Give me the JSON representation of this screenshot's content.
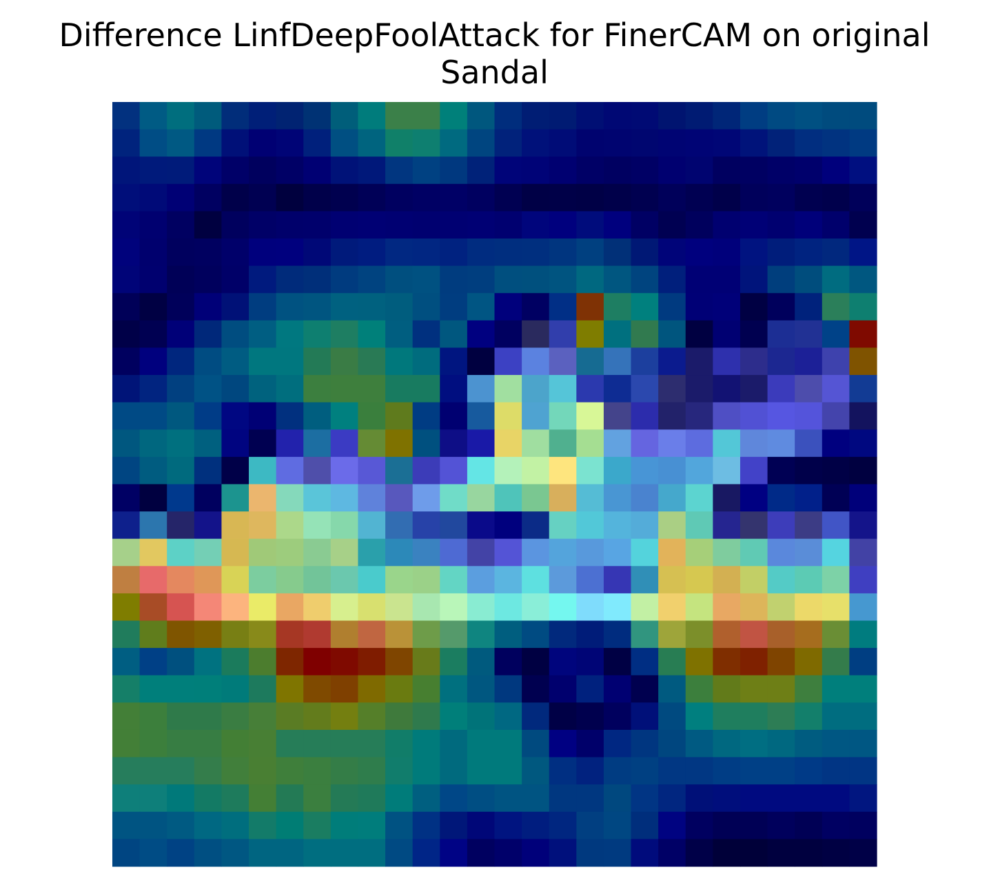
{
  "chart_data": {
    "type": "heatmap",
    "title_lines": [
      "Difference LinfDeepFoolAttack for FinerCAM on original",
      "Sandal"
    ],
    "axes": "off",
    "colorbar": false,
    "rows": 28,
    "cols": 28,
    "cells": [
      [
        "#02317f",
        "#005b84",
        "#006e7e",
        "#005b7c",
        "#012d7a",
        "#001f78",
        "#012372",
        "#003274",
        "#005e7a",
        "#007c7c",
        "#3b8049",
        "#3b8049",
        "#00807a",
        "#00577e",
        "#002d7d",
        "#001d74",
        "#001b73",
        "#000f74",
        "#000874",
        "#000a74",
        "#001470",
        "#001b73",
        "#002678",
        "#003d82",
        "#004a82",
        "#005082",
        "#004b7e",
        "#004b7e"
      ],
      [
        "#00237d",
        "#004d85",
        "#005983",
        "#003982",
        "#001078",
        "#000073",
        "#000476",
        "#00207c",
        "#004f82",
        "#00647f",
        "#108069",
        "#0e7f70",
        "#006a80",
        "#004580",
        "#01227b",
        "#00117a",
        "#000c77",
        "#00036f",
        "#000470",
        "#000670",
        "#000473",
        "#000475",
        "#000676",
        "#00137a",
        "#012279",
        "#012e80",
        "#013380",
        "#003a82"
      ],
      [
        "#00157a",
        "#001a7b",
        "#001b7a",
        "#00047a",
        "#000068",
        "#00005e",
        "#000066",
        "#000073",
        "#001278",
        "#00187a",
        "#013680",
        "#004182",
        "#00387f",
        "#002279",
        "#000479",
        "#000377",
        "#000071",
        "#000066",
        "#000061",
        "#000065",
        "#000070",
        "#000470",
        "#000060",
        "#000062",
        "#000068",
        "#00006c",
        "#00007c",
        "#000f80"
      ],
      [
        "#000e7a",
        "#000a78",
        "#000075",
        "#000061",
        "#00004a",
        "#000052",
        "#00003e",
        "#00004a",
        "#00004f",
        "#000057",
        "#000060",
        "#000064",
        "#000066",
        "#000060",
        "#000052",
        "#000046",
        "#000048",
        "#000046",
        "#00004a",
        "#000050",
        "#00005a",
        "#000052",
        "#00004a",
        "#00005b",
        "#00005e",
        "#000050",
        "#00004c",
        "#00005a"
      ],
      [
        "#000377",
        "#000070",
        "#000061",
        "#000040",
        "#00005e",
        "#000067",
        "#00006b",
        "#00006c",
        "#000072",
        "#000074",
        "#000072",
        "#000070",
        "#000072",
        "#000074",
        "#000070",
        "#00057c",
        "#00007e",
        "#000c7c",
        "#00007e",
        "#000064",
        "#000052",
        "#00005d",
        "#000070",
        "#000076",
        "#000070",
        "#00007a",
        "#00006c",
        "#00004f"
      ],
      [
        "#00027c",
        "#00006e",
        "#00005e",
        "#000060",
        "#00006a",
        "#00007d",
        "#00007e",
        "#000877",
        "#001a7b",
        "#001c80",
        "#012882",
        "#012682",
        "#002280",
        "#002c80",
        "#002e7f",
        "#002f7f",
        "#00357f",
        "#004080",
        "#013078",
        "#001875",
        "#000479",
        "#00007e",
        "#00007b",
        "#001380",
        "#001d7b",
        "#002380",
        "#01287e",
        "#001586"
      ],
      [
        "#000478",
        "#00006f",
        "#000057",
        "#00005d",
        "#000068",
        "#001a7e",
        "#002b7b",
        "#002f7a",
        "#003b7f",
        "#004380",
        "#004f7f",
        "#005181",
        "#003c7f",
        "#003e7f",
        "#004f7f",
        "#00507e",
        "#005480",
        "#006880",
        "#005680",
        "#00447f",
        "#001f7c",
        "#000075",
        "#000075",
        "#00147b",
        "#003e7d",
        "#004d7d",
        "#006c80",
        "#005780"
      ],
      [
        "#000058",
        "#000043",
        "#00005a",
        "#000078",
        "#001177",
        "#003d80",
        "#005281",
        "#005580",
        "#006180",
        "#00617f",
        "#005d7e",
        "#004f80",
        "#003d80",
        "#005583",
        "#00007c",
        "#000062",
        "#012f86",
        "#7f3205",
        "#1e7e62",
        "#00807e",
        "#003a80",
        "#000076",
        "#000079",
        "#000043",
        "#00005c",
        "#00227c",
        "#2b7f5a",
        "#0e7f70"
      ],
      [
        "#000048",
        "#000052",
        "#000078",
        "#00287a",
        "#004d80",
        "#005e82",
        "#007880",
        "#0e7f70",
        "#1e7e62",
        "#00807a",
        "#005e80",
        "#00307f",
        "#00577f",
        "#000080",
        "#000060",
        "#2a2a5e",
        "#313eac",
        "#7f7d00",
        "#00707f",
        "#317a4f",
        "#00557e",
        "#000041",
        "#000072",
        "#000050",
        "#1c2e94",
        "#213194",
        "#004288",
        "#7f0a00"
      ],
      [
        "#00005f",
        "#00007e",
        "#00267e",
        "#004c82",
        "#005c82",
        "#00777f",
        "#00777f",
        "#237a56",
        "#3a7c45",
        "#297a55",
        "#00787c",
        "#006c7e",
        "#001580",
        "#000040",
        "#3c41c3",
        "#5b82e0",
        "#5b61bf",
        "#166b92",
        "#3573ba",
        "#1c3f9e",
        "#0b1b8e",
        "#1b1b6a",
        "#2e30ad",
        "#2d2d8c",
        "#1c2791",
        "#1c2097",
        "#3e42ad",
        "#7f5300"
      ],
      [
        "#001478",
        "#012480",
        "#014080",
        "#005285",
        "#00477f",
        "#00627e",
        "#006e7e",
        "#3c7f3f",
        "#3e7f3d",
        "#3e7f3d",
        "#187b60",
        "#187b60",
        "#000e80",
        "#4c93d0",
        "#a1dfa0",
        "#4ca4cb",
        "#55c5d8",
        "#2b39ae",
        "#0e2c93",
        "#2b48ae",
        "#2d2d6f",
        "#1b1b6a",
        "#121273",
        "#1b1b6a",
        "#3b3bbb",
        "#4d4dac",
        "#5555d4",
        "#123b94"
      ],
      [
        "#004a85",
        "#004a85",
        "#00587f",
        "#003c87",
        "#000782",
        "#000075",
        "#01307f",
        "#005e7f",
        "#00807f",
        "#3a7f3d",
        "#5f7b1d",
        "#003c83",
        "#000071",
        "#175a9e",
        "#dddc68",
        "#4fa3d1",
        "#73d7ba",
        "#d8f797",
        "#44448b",
        "#2c2cac",
        "#22226a",
        "#27277d",
        "#4f4fc4",
        "#5151d4",
        "#5656e1",
        "#5454db",
        "#4444ac",
        "#13135e"
      ],
      [
        "#00577f",
        "#00677f",
        "#00707f",
        "#00607f",
        "#000480",
        "#000051",
        "#2222ac",
        "#1c6ea2",
        "#3b3bc3",
        "#658b34",
        "#7f7200",
        "#00507f",
        "#0e0e86",
        "#1919a7",
        "#e8d466",
        "#a0dea0",
        "#50b08f",
        "#a5de92",
        "#62a2e0",
        "#6565e0",
        "#6a7ee9",
        "#5d6cdf",
        "#53c7d7",
        "#5f87db",
        "#5f8be0",
        "#3b51bd",
        "#00007f",
        "#000880"
      ],
      [
        "#004582",
        "#005c80",
        "#006a7e",
        "#00307e",
        "#000048",
        "#3db9c3",
        "#5f6ce1",
        "#4f4faa",
        "#6b6be9",
        "#5858d6",
        "#1b6f95",
        "#3c3cb8",
        "#5353d6",
        "#64e5e5",
        "#b4f2ba",
        "#c2f2a4",
        "#fee57e",
        "#7be3d0",
        "#3ba8cb",
        "#4895d6",
        "#4890d3",
        "#52a6dc",
        "#6dbde3",
        "#4242c8",
        "#000054",
        "#00004a",
        "#000046",
        "#000040"
      ],
      [
        "#000064",
        "#000040",
        "#00398d",
        "#00005f",
        "#1c948f",
        "#ebb66e",
        "#85d9bb",
        "#5ac5d9",
        "#5eb8e1",
        "#5f82db",
        "#5858bd",
        "#6e9cea",
        "#70dcc8",
        "#98d69f",
        "#4fc4ba",
        "#7ac791",
        "#d8af5c",
        "#55bcd5",
        "#4996d3",
        "#4a83cf",
        "#45a8cc",
        "#5cd4d0",
        "#181862",
        "#000082",
        "#002a88",
        "#01208a",
        "#000055",
        "#00007a"
      ],
      [
        "#0e208c",
        "#2c76ae",
        "#252569",
        "#13138a",
        "#d8b754",
        "#deb75e",
        "#acd88a",
        "#95e3b7",
        "#86d8ab",
        "#52b4d2",
        "#326db2",
        "#2742a8",
        "#21489e",
        "#0a0a8a",
        "#00007e",
        "#0b2b87",
        "#66d1c2",
        "#52c8d8",
        "#54b4dc",
        "#54acd9",
        "#aacf84",
        "#5fc9b5",
        "#252590",
        "#34346e",
        "#3d3dba",
        "#3c3c85",
        "#4155c6",
        "#14148a"
      ],
      [
        "#a6d08a",
        "#e2c860",
        "#5dd1c6",
        "#74cfb5",
        "#d6b852",
        "#a0c978",
        "#9dcc7d",
        "#8acb92",
        "#a7d088",
        "#2aa0ab",
        "#2c89b9",
        "#3a82c0",
        "#4e6ad3",
        "#4343a6",
        "#5454d6",
        "#5b95e0",
        "#54a4dc",
        "#5899dc",
        "#58a5e3",
        "#54d3dc",
        "#e2b35a",
        "#a6cf79",
        "#7fcc9e",
        "#60cab4",
        "#5a88dc",
        "#5a8dd8",
        "#55d4e0",
        "#4242a5"
      ],
      [
        "#bf7f41",
        "#e76a6a",
        "#e4885f",
        "#df9758",
        "#d8d356",
        "#7ccd9f",
        "#86cb8d",
        "#72c499",
        "#6bc8ae",
        "#4acbcc",
        "#9ad58b",
        "#9bd188",
        "#63d5c4",
        "#5b9edf",
        "#5bb5e0",
        "#5ee0e0",
        "#5c9adb",
        "#4c70d2",
        "#3636b4",
        "#308fb7",
        "#d6c052",
        "#d6c850",
        "#d3b052",
        "#c2cf66",
        "#54cbc6",
        "#5ccbb4",
        "#7dd2a7",
        "#3f3fc1"
      ],
      [
        "#7f7d00",
        "#a84c26",
        "#d65451",
        "#f48777",
        "#fcb47e",
        "#eaeb68",
        "#e9a763",
        "#efcd6d",
        "#d7ef8e",
        "#d8e06f",
        "#cae48f",
        "#a8e7b0",
        "#b9f6b9",
        "#89ecd2",
        "#6de8e1",
        "#8aeed8",
        "#74f7ef",
        "#7fdcfc",
        "#80eafd",
        "#c2f0a4",
        "#f1d06d",
        "#c5e47f",
        "#e8a863",
        "#ddb55a",
        "#c1d16f",
        "#ecd969",
        "#e7e06a",
        "#4698d0"
      ],
      [
        "#207c5c",
        "#607d1c",
        "#7f5500",
        "#7f6000",
        "#787f14",
        "#888a1a",
        "#a63724",
        "#b03a30",
        "#b07f2f",
        "#c06641",
        "#ba9238",
        "#6e9c49",
        "#559a6b",
        "#0f8580",
        "#005e7f",
        "#004b82",
        "#01297d",
        "#001c79",
        "#002c7f",
        "#31957f",
        "#9ea53a",
        "#7c8f2a",
        "#b0602d",
        "#c15443",
        "#a8602a",
        "#a66d1e",
        "#6a8e35",
        "#007c7f"
      ],
      [
        "#005e82",
        "#004086",
        "#00507f",
        "#007280",
        "#1b7b5c",
        "#4c7d2e",
        "#7e2600",
        "#7f0000",
        "#7f0a00",
        "#7f1c00",
        "#7f4500",
        "#687b1a",
        "#1b7d60",
        "#005a7e",
        "#00005e",
        "#000042",
        "#00057d",
        "#000576",
        "#000044",
        "#002e83",
        "#287d53",
        "#7f7200",
        "#7f2e00",
        "#7f2100",
        "#7f4400",
        "#7f6a00",
        "#347c4b",
        "#003e82"
      ],
      [
        "#157f68",
        "#007f7b",
        "#007f7b",
        "#007f7a",
        "#007b7a",
        "#1d7a5d",
        "#7f7500",
        "#7f4a00",
        "#7f4000",
        "#7f6a00",
        "#6a7b10",
        "#477f30",
        "#00707f",
        "#005780",
        "#00387f",
        "#000050",
        "#00006e",
        "#00217e",
        "#000072",
        "#00004f",
        "#005a80",
        "#3c7f3d",
        "#627b1a",
        "#6e7f16",
        "#6e7f16",
        "#3e7f3e",
        "#007f7c",
        "#007f7c"
      ],
      [
        "#437f37",
        "#3c7f3c",
        "#2f7a4a",
        "#2f7a4a",
        "#3a7d42",
        "#477f38",
        "#5a7c24",
        "#637c1c",
        "#747f10",
        "#557f29",
        "#3f7a3c",
        "#2f7a4d",
        "#007f7a",
        "#007379",
        "#006882",
        "#01297d",
        "#000046",
        "#00004e",
        "#00005e",
        "#001079",
        "#004a80",
        "#007f7f",
        "#1f7e5e",
        "#1f7e5e",
        "#2d7d55",
        "#137f6b",
        "#006d80",
        "#006d80"
      ],
      [
        "#437f37",
        "#3c7f3c",
        "#377d43",
        "#377d43",
        "#437f35",
        "#487f34",
        "#267d58",
        "#267d58",
        "#267d58",
        "#267d58",
        "#117d69",
        "#007b7b",
        "#006a7e",
        "#007a7c",
        "#007a7c",
        "#004a7f",
        "#000082",
        "#00006a",
        "#002782",
        "#003680",
        "#00467f",
        "#005a82",
        "#006880",
        "#006e82",
        "#006880",
        "#005c80",
        "#005783",
        "#005783"
      ],
      [
        "#267d5c",
        "#267d5c",
        "#267d5c",
        "#347d4b",
        "#417f3b",
        "#497f33",
        "#3f7f3b",
        "#3b7f3f",
        "#347d47",
        "#2f7d4c",
        "#117d6c",
        "#007b7b",
        "#006a7e",
        "#007a7c",
        "#007a7c",
        "#00587f",
        "#002f82",
        "#01227f",
        "#003c82",
        "#004082",
        "#013783",
        "#013783",
        "#003d85",
        "#004086",
        "#004086",
        "#003a87",
        "#013584",
        "#013584"
      ],
      [
        "#0e7f7a",
        "#0e7f7a",
        "#00797a",
        "#137a64",
        "#1e7b5c",
        "#447f35",
        "#237a55",
        "#3b7f3f",
        "#247a56",
        "#1f7a5a",
        "#007c7a",
        "#005f80",
        "#004787",
        "#004e83",
        "#005482",
        "#005482",
        "#003780",
        "#003780",
        "#00487f",
        "#013584",
        "#012680",
        "#001078",
        "#000e7c",
        "#000a80",
        "#000a80",
        "#000a80",
        "#000a80",
        "#011680"
      ],
      [
        "#005482",
        "#005482",
        "#005a82",
        "#006882",
        "#006e7e",
        "#137b69",
        "#007d74",
        "#1a7d61",
        "#007d7a",
        "#007d7c",
        "#005282",
        "#003184",
        "#001779",
        "#000778",
        "#001480",
        "#001d7f",
        "#002680",
        "#013f81",
        "#004782",
        "#002e7c",
        "#000381",
        "#000060",
        "#000055",
        "#000055",
        "#00005c",
        "#000055",
        "#000062",
        "#00005f"
      ],
      [
        "#004582",
        "#004c85",
        "#004284",
        "#004f82",
        "#005782",
        "#006581",
        "#006581",
        "#006e80",
        "#006e80",
        "#006e80",
        "#004a83",
        "#002587",
        "#000385",
        "#000060",
        "#00006a",
        "#00007a",
        "#00107c",
        "#00397f",
        "#003a80",
        "#000b7c",
        "#000066",
        "#000048",
        "#000039",
        "#000039",
        "#00003f",
        "#00003f",
        "#000043",
        "#000047"
      ]
    ]
  }
}
